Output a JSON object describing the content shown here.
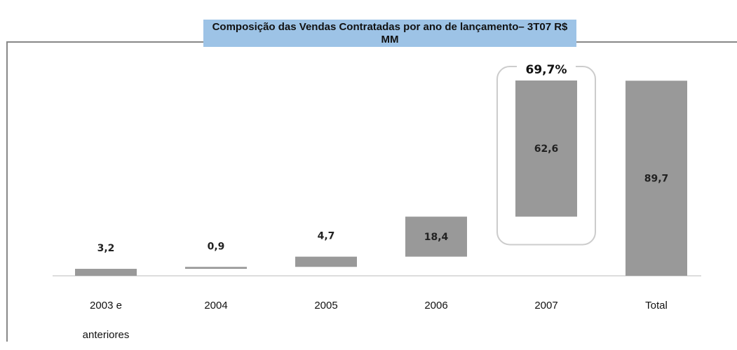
{
  "chart_data": {
    "type": "waterfall",
    "title": "Composição das Vendas Contratadas por ano de lançamento– 3T07 R$ MM",
    "categories": [
      "2003 e anteriores",
      "2004",
      "2005",
      "2006",
      "2007",
      "Total"
    ],
    "values": [
      3.2,
      0.9,
      4.7,
      18.4,
      62.6,
      89.7
    ],
    "value_labels": [
      "3,2",
      "0,9",
      "4,7",
      "18,4",
      "62,6",
      "89,7"
    ],
    "color": "#999999",
    "annotation": "69,7%"
  }
}
